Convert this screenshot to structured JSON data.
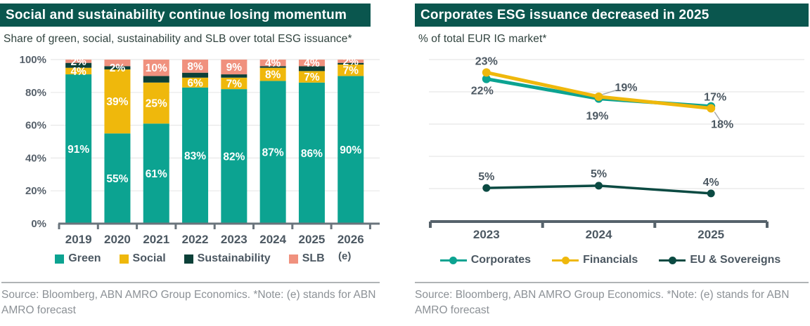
{
  "panels": [
    {
      "title": "Social and sustainability continue losing momentum",
      "subtitle": "Share of green, social, sustainability and SLB over total ESG issuance*",
      "footer": "Source: Bloomberg, ABN AMRO Group Economics. *Note: (e) stands for ABN AMRO forecast"
    },
    {
      "title": "Corporates ESG issuance decreased in 2025",
      "subtitle": "% of total EUR IG market*",
      "footer": "Source: Bloomberg, ABN AMRO Group Economics. *Note: (e) stands for ABN AMRO forecast"
    }
  ],
  "colors": {
    "header_bg": "#0A564E",
    "teal": "#0CA391",
    "yellow": "#EFB80C",
    "dark_teal": "#0C4038",
    "eu_dark_teal": "#0B4A42",
    "salmon": "#F0917E",
    "label_text": "#4C5862",
    "axis_text": "#57616B",
    "gridline": "#E8E8E8",
    "baseline_left": "#6A747C",
    "baseline_right": "#56626B",
    "leader": "#A7ACB0",
    "bar_label": "#FFFFFF"
  },
  "chart_data": [
    {
      "type": "bar",
      "stacked": true,
      "title": "Social and sustainability continue losing momentum",
      "categories": [
        "2019",
        "2020",
        "2021",
        "2022",
        "2023",
        "2024",
        "2025",
        "2026"
      ],
      "last_category_note": "(e)",
      "ylim": [
        0,
        100
      ],
      "yticks": [
        0,
        20,
        40,
        60,
        80,
        100
      ],
      "ytick_labels": [
        "0%",
        "20%",
        "40%",
        "60%",
        "80%",
        "100%"
      ],
      "grid": true,
      "legend_position": "bottom",
      "series": [
        {
          "name": "Green",
          "color": "#0CA391",
          "values": [
            91,
            55,
            61,
            83,
            82,
            87,
            86,
            90
          ],
          "shown_labels": [
            "91%",
            "55%",
            "61%",
            "83%",
            "82%",
            "87%",
            "86%",
            "90%"
          ]
        },
        {
          "name": "Social",
          "color": "#EFB80C",
          "values": [
            4,
            39,
            25,
            6,
            7,
            8,
            7,
            7
          ],
          "shown_labels": [
            "4%",
            "39%",
            "25%",
            "6%",
            "7%",
            "8%",
            "7%",
            "7%"
          ]
        },
        {
          "name": "Sustainability",
          "color": "#0C4038",
          "values": [
            3,
            2,
            4,
            3,
            2,
            1,
            3,
            1
          ],
          "shown_labels": [
            null,
            "2%",
            null,
            null,
            null,
            null,
            null,
            null
          ]
        },
        {
          "name": "SLB",
          "color": "#F0917E",
          "values": [
            2,
            4,
            10,
            8,
            9,
            4,
            4,
            2
          ],
          "shown_labels": [
            "2%",
            null,
            "10%",
            "8%",
            "9%",
            "4%",
            "4%",
            "2%"
          ]
        }
      ]
    },
    {
      "type": "line",
      "title": "Corporates ESG issuance decreased in 2025",
      "categories": [
        "2023",
        "2024",
        "2025"
      ],
      "ylim": [
        0,
        27
      ],
      "grid_values": [
        5,
        10,
        15,
        20,
        25
      ],
      "grid": true,
      "legend_position": "bottom",
      "series": [
        {
          "name": "Corporates",
          "color": "#0CA391",
          "values": [
            22,
            19,
            18
          ],
          "labels": [
            "22%",
            "19%",
            "18%"
          ],
          "plot_est": [
            22,
            18.95,
            17.75
          ]
        },
        {
          "name": "Financials",
          "color": "#EFB80C",
          "values": [
            23,
            19,
            17
          ],
          "labels": [
            "23%",
            "19%",
            "17%"
          ],
          "plot_est": [
            23,
            19.25,
            17.45
          ]
        },
        {
          "name": "EU & Sovereigns",
          "color": "#0B4A42",
          "values": [
            5,
            5,
            4
          ],
          "labels": [
            "5%",
            "5%",
            "4%"
          ],
          "plot_est": [
            5.1,
            5.45,
            4.25
          ]
        }
      ]
    }
  ]
}
